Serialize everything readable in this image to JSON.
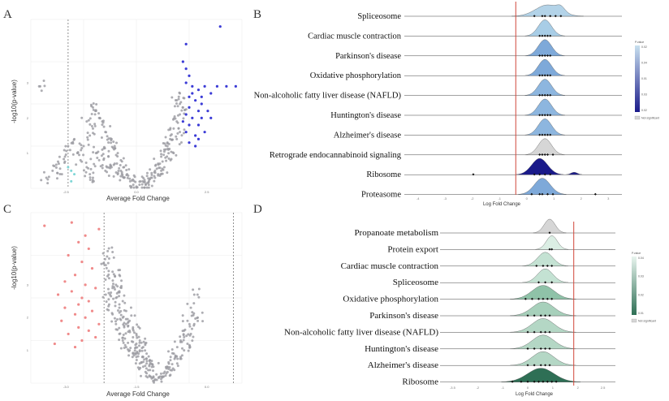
{
  "panels": {
    "A": {
      "label": "A"
    },
    "B": {
      "label": "B"
    },
    "C": {
      "label": "C"
    },
    "D": {
      "label": "D"
    }
  },
  "chart_data": [
    {
      "id": "A",
      "type": "scatter",
      "title": "",
      "xlabel": "Average Fold Change",
      "ylabel": "-log10(p-value)",
      "xlim": [
        -3.5,
        3.3
      ],
      "ylim": [
        0,
        4.8
      ],
      "x_ticks": [
        "-2.5",
        "0.0",
        "2.5"
      ],
      "y_ticks": [
        "1",
        "2",
        "3"
      ],
      "threshold_x": -2.3,
      "highlight_color": "#3b3bd6",
      "base_color": "#9a9aa0",
      "highlight_points": [
        [
          1.5,
          4.1
        ],
        [
          1.4,
          3.6
        ],
        [
          1.5,
          3.4
        ],
        [
          1.6,
          3.2
        ],
        [
          1.5,
          3.0
        ],
        [
          1.7,
          2.9
        ],
        [
          1.9,
          2.8
        ],
        [
          2.1,
          2.9
        ],
        [
          2.5,
          2.9
        ],
        [
          2.8,
          2.9
        ],
        [
          3.1,
          2.9
        ],
        [
          2.3,
          2.7
        ],
        [
          1.6,
          2.6
        ],
        [
          1.8,
          2.5
        ],
        [
          2.0,
          2.4
        ],
        [
          1.6,
          2.3
        ],
        [
          1.9,
          2.2
        ],
        [
          2.2,
          2.2
        ],
        [
          1.5,
          2.1
        ],
        [
          1.7,
          2.0
        ],
        [
          2.0,
          2.0
        ],
        [
          1.6,
          1.8
        ],
        [
          1.9,
          1.8
        ],
        [
          1.5,
          1.6
        ],
        [
          1.8,
          1.5
        ],
        [
          2.1,
          1.6
        ],
        [
          1.6,
          1.3
        ],
        [
          2.6,
          4.6
        ],
        [
          1.8,
          1.2
        ],
        [
          1.7,
          2.7
        ],
        [
          2.3,
          2.0
        ],
        [
          1.4,
          1.9
        ],
        [
          2.0,
          2.6
        ],
        [
          1.9,
          1.4
        ]
      ],
      "cyan_points": [
        [
          -2.2,
          0.2
        ],
        [
          -2.1,
          0.4
        ],
        [
          -2.3,
          0.6
        ],
        [
          -2.2,
          0.5
        ]
      ],
      "base_points": [
        [
          -1.4,
          2.2
        ],
        [
          -1.2,
          1.9
        ],
        [
          -1.1,
          1.6
        ],
        [
          -0.9,
          1.4
        ],
        [
          -0.8,
          1.2
        ],
        [
          -0.7,
          1.0
        ],
        [
          -0.6,
          0.8
        ],
        [
          -0.5,
          0.6
        ],
        [
          -0.4,
          0.4
        ],
        [
          -0.3,
          0.2
        ],
        [
          -0.2,
          0.1
        ],
        [
          -0.1,
          0.05
        ],
        [
          -1.3,
          2.0
        ],
        [
          -1.5,
          1.7
        ],
        [
          -1.0,
          1.3
        ],
        [
          -0.6,
          0.5
        ],
        [
          0.2,
          0.1
        ],
        [
          0.3,
          0.2
        ],
        [
          0.4,
          0.3
        ],
        [
          0.5,
          0.5
        ],
        [
          0.6,
          0.7
        ],
        [
          0.7,
          0.9
        ],
        [
          0.8,
          1.1
        ],
        [
          0.9,
          1.3
        ],
        [
          1.0,
          1.5
        ],
        [
          1.1,
          1.7
        ],
        [
          1.2,
          1.9
        ],
        [
          1.3,
          2.1
        ],
        [
          1.2,
          2.5
        ],
        [
          1.3,
          2.7
        ],
        [
          0.9,
          1.2
        ],
        [
          0.6,
          0.4
        ],
        [
          0.3,
          0.1
        ],
        [
          -1.6,
          1.5
        ],
        [
          -1.8,
          1.2
        ],
        [
          -2.0,
          1.0
        ],
        [
          -1.9,
          0.8
        ],
        [
          -1.7,
          0.6
        ],
        [
          -1.6,
          0.4
        ],
        [
          -1.5,
          0.3
        ],
        [
          -2.4,
          0.9
        ],
        [
          -2.6,
          0.7
        ],
        [
          -2.8,
          0.5
        ],
        [
          -3.0,
          0.3
        ],
        [
          -1.2,
          1.1
        ],
        [
          -1.0,
          0.9
        ],
        [
          -0.8,
          0.7
        ],
        [
          -0.5,
          0.3
        ],
        [
          0.1,
          0.2
        ],
        [
          0.5,
          0.3
        ],
        [
          0.8,
          0.6
        ],
        [
          1.1,
          1.0
        ],
        [
          1.2,
          1.4
        ],
        [
          1.3,
          1.6
        ],
        [
          1.0,
          0.8
        ],
        [
          0.7,
          0.5
        ],
        [
          -1.1,
          0.5
        ],
        [
          -1.3,
          0.8
        ],
        [
          -1.4,
          1.0
        ],
        [
          -0.9,
          0.6
        ],
        [
          -0.7,
          0.4
        ],
        [
          0.0,
          0.1
        ],
        [
          1.4,
          2.3
        ],
        [
          1.3,
          2.4
        ],
        [
          -1.5,
          2.3
        ],
        [
          -1.7,
          1.9
        ],
        [
          -2.1,
          1.4
        ],
        [
          -2.3,
          1.2
        ],
        [
          -2.5,
          0.4
        ],
        [
          -3.2,
          2.9
        ]
      ]
    },
    {
      "id": "B",
      "type": "ridgeline",
      "xlabel": "Log Fold Change",
      "xlim": [
        -4.3,
        3.9
      ],
      "x_ticks": [
        "-4",
        "-3",
        "-2",
        "-1",
        "0",
        "1",
        "2",
        "3"
      ],
      "vline_x": -0.1,
      "legend": {
        "title": "P.value",
        "ticks": [
          "0.02",
          "0.04",
          "0.01",
          "0.03",
          "0.02"
        ],
        "gradient": [
          "#c8e0ef",
          "#1a1a8a"
        ],
        "not_significant_label": "Not significant",
        "not_significant_color": "#d6d6d6"
      },
      "series": [
        {
          "name": "Spliceosome",
          "center": 1.1,
          "spread": 0.45,
          "color": "#b3d3e8",
          "points": [
            0.6,
            0.9,
            1.0,
            1.2,
            1.4,
            1.6
          ]
        },
        {
          "name": "Cardiac muscle contraction",
          "center": 1.0,
          "spread": 0.25,
          "color": "#a8cde6",
          "points": [
            0.8,
            0.9,
            1.0,
            1.1,
            1.2
          ]
        },
        {
          "name": "Parkinson's disease",
          "center": 1.0,
          "spread": 0.25,
          "color": "#7ea9d9",
          "points": [
            0.8,
            0.9,
            1.0,
            1.1,
            1.2
          ]
        },
        {
          "name": "Oxidative phosphorylation",
          "center": 1.0,
          "spread": 0.25,
          "color": "#7ea9d9",
          "points": [
            0.8,
            0.9,
            1.0,
            1.1,
            1.2
          ]
        },
        {
          "name": "Non-alcoholic fatty liver disease (NAFLD)",
          "center": 1.0,
          "spread": 0.25,
          "color": "#8db6df",
          "points": [
            0.8,
            0.9,
            1.0,
            1.1,
            1.2
          ]
        },
        {
          "name": "Huntington's disease",
          "center": 1.0,
          "spread": 0.25,
          "color": "#8db6df",
          "points": [
            0.8,
            0.9,
            1.0,
            1.1,
            1.2
          ]
        },
        {
          "name": "Alzheimer's disease",
          "center": 1.0,
          "spread": 0.25,
          "color": "#8db6df",
          "points": [
            0.8,
            0.9,
            1.0,
            1.1,
            1.2
          ]
        },
        {
          "name": "Retrograde endocannabinoid signaling",
          "center": 1.0,
          "spread": 0.25,
          "color": "#d6d6d6",
          "points": [
            0.8,
            0.9,
            1.0,
            1.1,
            1.3
          ]
        },
        {
          "name": "Ribosome",
          "center": 0.8,
          "spread": 0.3,
          "color": "#1a1a8a",
          "points": [
            -1.7,
            0.6,
            0.8,
            1.0,
            1.2
          ]
        },
        {
          "name": "Proteasome",
          "center": 0.9,
          "spread": 0.3,
          "color": "#7ea9d9",
          "points": [
            0.5,
            0.8,
            0.9,
            1.1,
            1.3,
            2.9
          ]
        }
      ]
    },
    {
      "id": "C",
      "type": "scatter",
      "title": "",
      "xlabel": "Average Fold Change",
      "ylabel": "-log10(p-value)",
      "xlim": [
        -3.6,
        2.6
      ],
      "ylim": [
        0,
        5.2
      ],
      "x_ticks": [
        "-3.0",
        "-1.5",
        "0.0"
      ],
      "y_ticks": [
        "1",
        "2",
        "3"
      ],
      "threshold_x": -1.45,
      "threshold_x2": 2.35,
      "highlight_color": "#f08a8a",
      "base_color": "#9a9aa0",
      "highlight_points": [
        [
          -2.4,
          4.9
        ],
        [
          -2.0,
          4.5
        ],
        [
          -2.2,
          4.3
        ],
        [
          -1.9,
          4.1
        ],
        [
          -2.5,
          3.9
        ],
        [
          -2.1,
          3.7
        ],
        [
          -1.8,
          3.5
        ],
        [
          -2.3,
          3.3
        ],
        [
          -2.6,
          3.1
        ],
        [
          -2.0,
          3.0
        ],
        [
          -1.7,
          2.9
        ],
        [
          -2.4,
          2.8
        ],
        [
          -2.8,
          2.7
        ],
        [
          -2.1,
          2.6
        ],
        [
          -1.9,
          2.5
        ],
        [
          -2.2,
          2.4
        ],
        [
          -2.6,
          2.3
        ],
        [
          -1.8,
          2.2
        ],
        [
          -2.3,
          2.1
        ],
        [
          -2.0,
          2.0
        ],
        [
          -2.7,
          1.9
        ],
        [
          -1.6,
          1.8
        ],
        [
          -2.2,
          1.7
        ],
        [
          -1.9,
          1.6
        ],
        [
          -2.5,
          1.5
        ],
        [
          -1.7,
          1.4
        ],
        [
          -2.1,
          1.3
        ],
        [
          -3.2,
          4.8
        ],
        [
          -2.9,
          1.2
        ],
        [
          -1.6,
          4.7
        ],
        [
          -2.3,
          1.1
        ]
      ],
      "base_points": [
        [
          -1.4,
          3.6
        ],
        [
          -1.3,
          3.2
        ],
        [
          -1.2,
          2.9
        ],
        [
          -1.1,
          2.6
        ],
        [
          -1.0,
          2.3
        ],
        [
          -0.9,
          2.0
        ],
        [
          -0.8,
          1.8
        ],
        [
          -0.7,
          1.6
        ],
        [
          -0.6,
          1.4
        ],
        [
          -0.5,
          1.2
        ],
        [
          -0.4,
          1.0
        ],
        [
          -0.3,
          0.8
        ],
        [
          -0.2,
          0.6
        ],
        [
          -0.1,
          0.4
        ],
        [
          0.0,
          0.2
        ],
        [
          0.1,
          0.1
        ],
        [
          -1.3,
          3.8
        ],
        [
          -1.2,
          3.4
        ],
        [
          -1.1,
          3.0
        ],
        [
          -1.0,
          2.8
        ],
        [
          -0.9,
          2.5
        ],
        [
          -0.8,
          2.2
        ],
        [
          -0.7,
          1.9
        ],
        [
          -0.6,
          1.7
        ],
        [
          -0.5,
          1.5
        ],
        [
          -0.4,
          1.3
        ],
        [
          -0.3,
          1.1
        ],
        [
          -0.2,
          0.9
        ],
        [
          -0.1,
          0.7
        ],
        [
          0.0,
          0.5
        ],
        [
          0.2,
          0.2
        ],
        [
          0.3,
          0.3
        ],
        [
          0.4,
          0.5
        ],
        [
          0.5,
          0.7
        ],
        [
          0.6,
          0.9
        ],
        [
          0.7,
          1.1
        ],
        [
          0.8,
          1.3
        ],
        [
          0.9,
          1.6
        ],
        [
          1.0,
          1.9
        ],
        [
          1.1,
          2.3
        ],
        [
          1.2,
          2.7
        ],
        [
          0.9,
          1.0
        ],
        [
          0.7,
          0.6
        ],
        [
          0.5,
          0.4
        ],
        [
          0.3,
          0.2
        ],
        [
          -0.9,
          1.3
        ],
        [
          -0.7,
          1.0
        ],
        [
          -0.5,
          0.8
        ],
        [
          -0.3,
          0.5
        ],
        [
          -1.1,
          1.8
        ],
        [
          -1.2,
          2.1
        ],
        [
          -1.3,
          2.4
        ],
        [
          -1.4,
          2.7
        ],
        [
          -1.0,
          1.5
        ],
        [
          1.1,
          1.5
        ],
        [
          1.2,
          1.8
        ],
        [
          1.0,
          1.2
        ],
        [
          0.8,
          0.8
        ],
        [
          -0.6,
          0.9
        ],
        [
          -0.4,
          0.6
        ],
        [
          -0.2,
          0.3
        ],
        [
          -0.8,
          1.1
        ],
        [
          -1.2,
          4.0
        ],
        [
          -1.0,
          3.3
        ],
        [
          1.3,
          2.0
        ],
        [
          -0.1,
          0.2
        ]
      ]
    },
    {
      "id": "D",
      "type": "ridgeline",
      "xlabel": "Log Fold Change",
      "xlim": [
        -4.5,
        3.5
      ],
      "x_ticks": [
        "-3.5",
        "-2",
        "-1",
        "0",
        "1",
        "2",
        "2.5"
      ],
      "vline_x": 1.6,
      "legend": {
        "title": "P.value",
        "ticks": [
          "0.04",
          "0.03",
          "0.02",
          "0.01"
        ],
        "gradient": [
          "#e8f4ee",
          "#2e6f55"
        ],
        "not_significant_label": "Not significant",
        "not_significant_color": "#d6d6d6"
      },
      "series": [
        {
          "name": "Propanoate metabolism",
          "center": 0.5,
          "spread": 0.25,
          "color": "#d6d6d6",
          "points": [
            0.5
          ]
        },
        {
          "name": "Protein export",
          "center": 0.6,
          "spread": 0.25,
          "color": "#dbeee4",
          "points": [
            0.5,
            0.6
          ]
        },
        {
          "name": "Cardiac muscle contraction",
          "center": 0.3,
          "spread": 0.35,
          "color": "#c4e2d3",
          "points": [
            -0.1,
            0.2,
            0.4,
            0.6
          ]
        },
        {
          "name": "Spliceosome",
          "center": 0.3,
          "spread": 0.35,
          "color": "#c4e2d3",
          "points": [
            0.0,
            0.3,
            0.6
          ]
        },
        {
          "name": "Oxidative phosphorylation",
          "center": 0.2,
          "spread": 0.5,
          "color": "#8fc2a8",
          "points": [
            -0.6,
            -0.3,
            0.0,
            0.2,
            0.4,
            0.6
          ]
        },
        {
          "name": "Parkinson's disease",
          "center": 0.2,
          "spread": 0.5,
          "color": "#a7d0bb",
          "points": [
            -0.5,
            -0.2,
            0.1,
            0.3,
            0.5
          ]
        },
        {
          "name": "Non-alcoholic fatty liver disease (NAFLD)",
          "center": 0.2,
          "spread": 0.5,
          "color": "#b4d7c5",
          "points": [
            -0.5,
            -0.2,
            0.1,
            0.3,
            0.5
          ]
        },
        {
          "name": "Huntington's disease",
          "center": 0.2,
          "spread": 0.5,
          "color": "#b4d7c5",
          "points": [
            -0.5,
            -0.2,
            0.1,
            0.3,
            0.5
          ]
        },
        {
          "name": "Alzheimer's disease",
          "center": 0.2,
          "spread": 0.5,
          "color": "#b4d7c5",
          "points": [
            -0.5,
            -0.2,
            0.1,
            0.3,
            0.5
          ]
        },
        {
          "name": "Ribosome",
          "center": 0.1,
          "spread": 0.6,
          "color": "#2e6f55",
          "points": [
            -1.2,
            -0.8,
            -0.5,
            -0.2,
            0.0,
            0.2,
            0.4,
            0.6,
            0.8
          ]
        }
      ]
    }
  ]
}
